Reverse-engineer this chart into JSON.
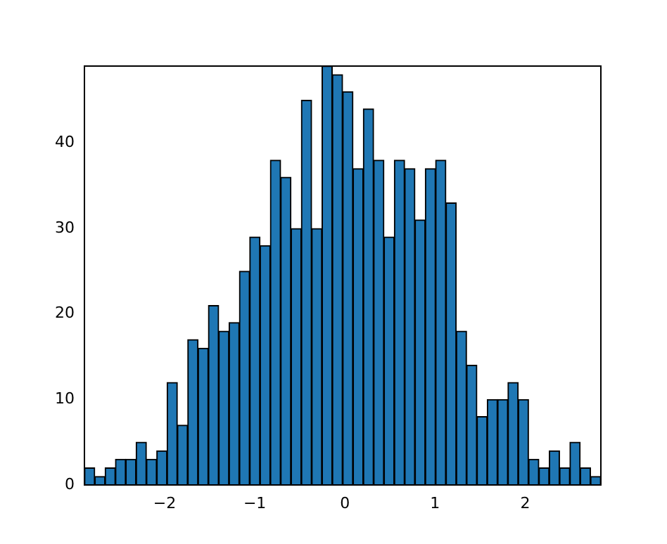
{
  "chart_data": {
    "type": "histogram",
    "color": "#1f77b4",
    "bins": [
      -2.89,
      -2.775,
      -2.661,
      -2.546,
      -2.432,
      -2.317,
      -2.202,
      -2.088,
      -1.973,
      -1.859,
      -1.744,
      -1.629,
      -1.515,
      -1.4,
      -1.286,
      -1.171,
      -1.056,
      -0.942,
      -0.827,
      -0.713,
      -0.598,
      -0.483,
      -0.369,
      -0.254,
      -0.14,
      -0.025,
      0.09,
      0.204,
      0.319,
      0.433,
      0.548,
      0.663,
      0.777,
      0.892,
      1.006,
      1.121,
      1.236,
      1.35,
      1.465,
      1.579,
      1.694,
      1.809,
      1.923,
      2.038,
      2.152,
      2.267,
      2.382,
      2.496,
      2.611,
      2.725,
      2.84
    ],
    "values": [
      2,
      1,
      2,
      3,
      3,
      5,
      3,
      4,
      12,
      7,
      17,
      16,
      21,
      18,
      19,
      25,
      29,
      28,
      38,
      36,
      30,
      45,
      30,
      49,
      48,
      46,
      37,
      44,
      38,
      29,
      38,
      37,
      31,
      37,
      38,
      33,
      18,
      14,
      8,
      10,
      10,
      12,
      10,
      3,
      2,
      4,
      2,
      5,
      2,
      1
    ],
    "xlim": [
      -2.89,
      2.84
    ],
    "ylim": [
      0,
      49
    ],
    "xticks": [
      {
        "value": -2,
        "label": "−2"
      },
      {
        "value": -1,
        "label": "−1"
      },
      0,
      1,
      2
    ],
    "yticks": [
      0,
      10,
      20,
      30,
      40
    ],
    "grid": false,
    "legend": false
  }
}
